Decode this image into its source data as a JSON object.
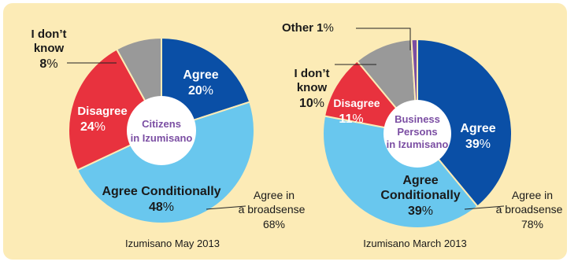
{
  "chart_data": [
    {
      "type": "pie",
      "title": "Citizens in Izumisano",
      "caption": "Izumisano May 2013",
      "series": [
        {
          "name": "Agree",
          "value": 20,
          "color": "#0a4fa6"
        },
        {
          "name": "Agree Conditionally",
          "value": 48,
          "color": "#69c7ee"
        },
        {
          "name": "Disagree",
          "value": 24,
          "color": "#e8323e"
        },
        {
          "name": "I don't know",
          "value": 8,
          "color": "#999999"
        }
      ],
      "annotation": {
        "label_line1": "Agree in",
        "label_line2": "a broadsense",
        "value": "68%"
      },
      "labels": {
        "agree": {
          "name": "Agree",
          "value": "20"
        },
        "agree_cond": {
          "name": "Agree Conditionally",
          "value": "48"
        },
        "disagree": {
          "name": "Disagree",
          "value": "24"
        },
        "dontknow": {
          "line1": "I don’t",
          "line2": "know",
          "value": "8"
        }
      },
      "center_line1": "Citizens",
      "center_line2": "in Izumisano"
    },
    {
      "type": "pie",
      "title": "Business Persons in Izumisano",
      "caption": "Izumisano March 2013",
      "series": [
        {
          "name": "Agree",
          "value": 39,
          "color": "#0a4fa6"
        },
        {
          "name": "Agree Conditionally",
          "value": 39,
          "color": "#69c7ee"
        },
        {
          "name": "Disagree",
          "value": 11,
          "color": "#e8323e"
        },
        {
          "name": "I don't know",
          "value": 10,
          "color": "#999999"
        },
        {
          "name": "Other",
          "value": 1,
          "color": "#7b4ea3"
        }
      ],
      "annotation": {
        "label_line1": "Agree in",
        "label_line2": "a broadsense",
        "value": "78%"
      },
      "labels": {
        "agree": {
          "name": "Agree",
          "value": "39"
        },
        "agree_cond_1": "Agree",
        "agree_cond_2": "Conditionally",
        "agree_cond_value": "39",
        "disagree": {
          "name": "Disagree",
          "value": "11"
        },
        "dontknow": {
          "line1": "I don’t",
          "line2": "know",
          "value": "10"
        },
        "other": {
          "name": "Other 1",
          "value": ""
        }
      },
      "center_line1": "Business",
      "center_line2": "Persons",
      "center_line3": "in Izumisano"
    }
  ],
  "common": {
    "percent_sign": "%",
    "colors": {
      "background": "#fcebb6",
      "center_text": "#7b4ea3",
      "label_white": "#ffffff",
      "label_dark": "#1a1a1a"
    }
  }
}
